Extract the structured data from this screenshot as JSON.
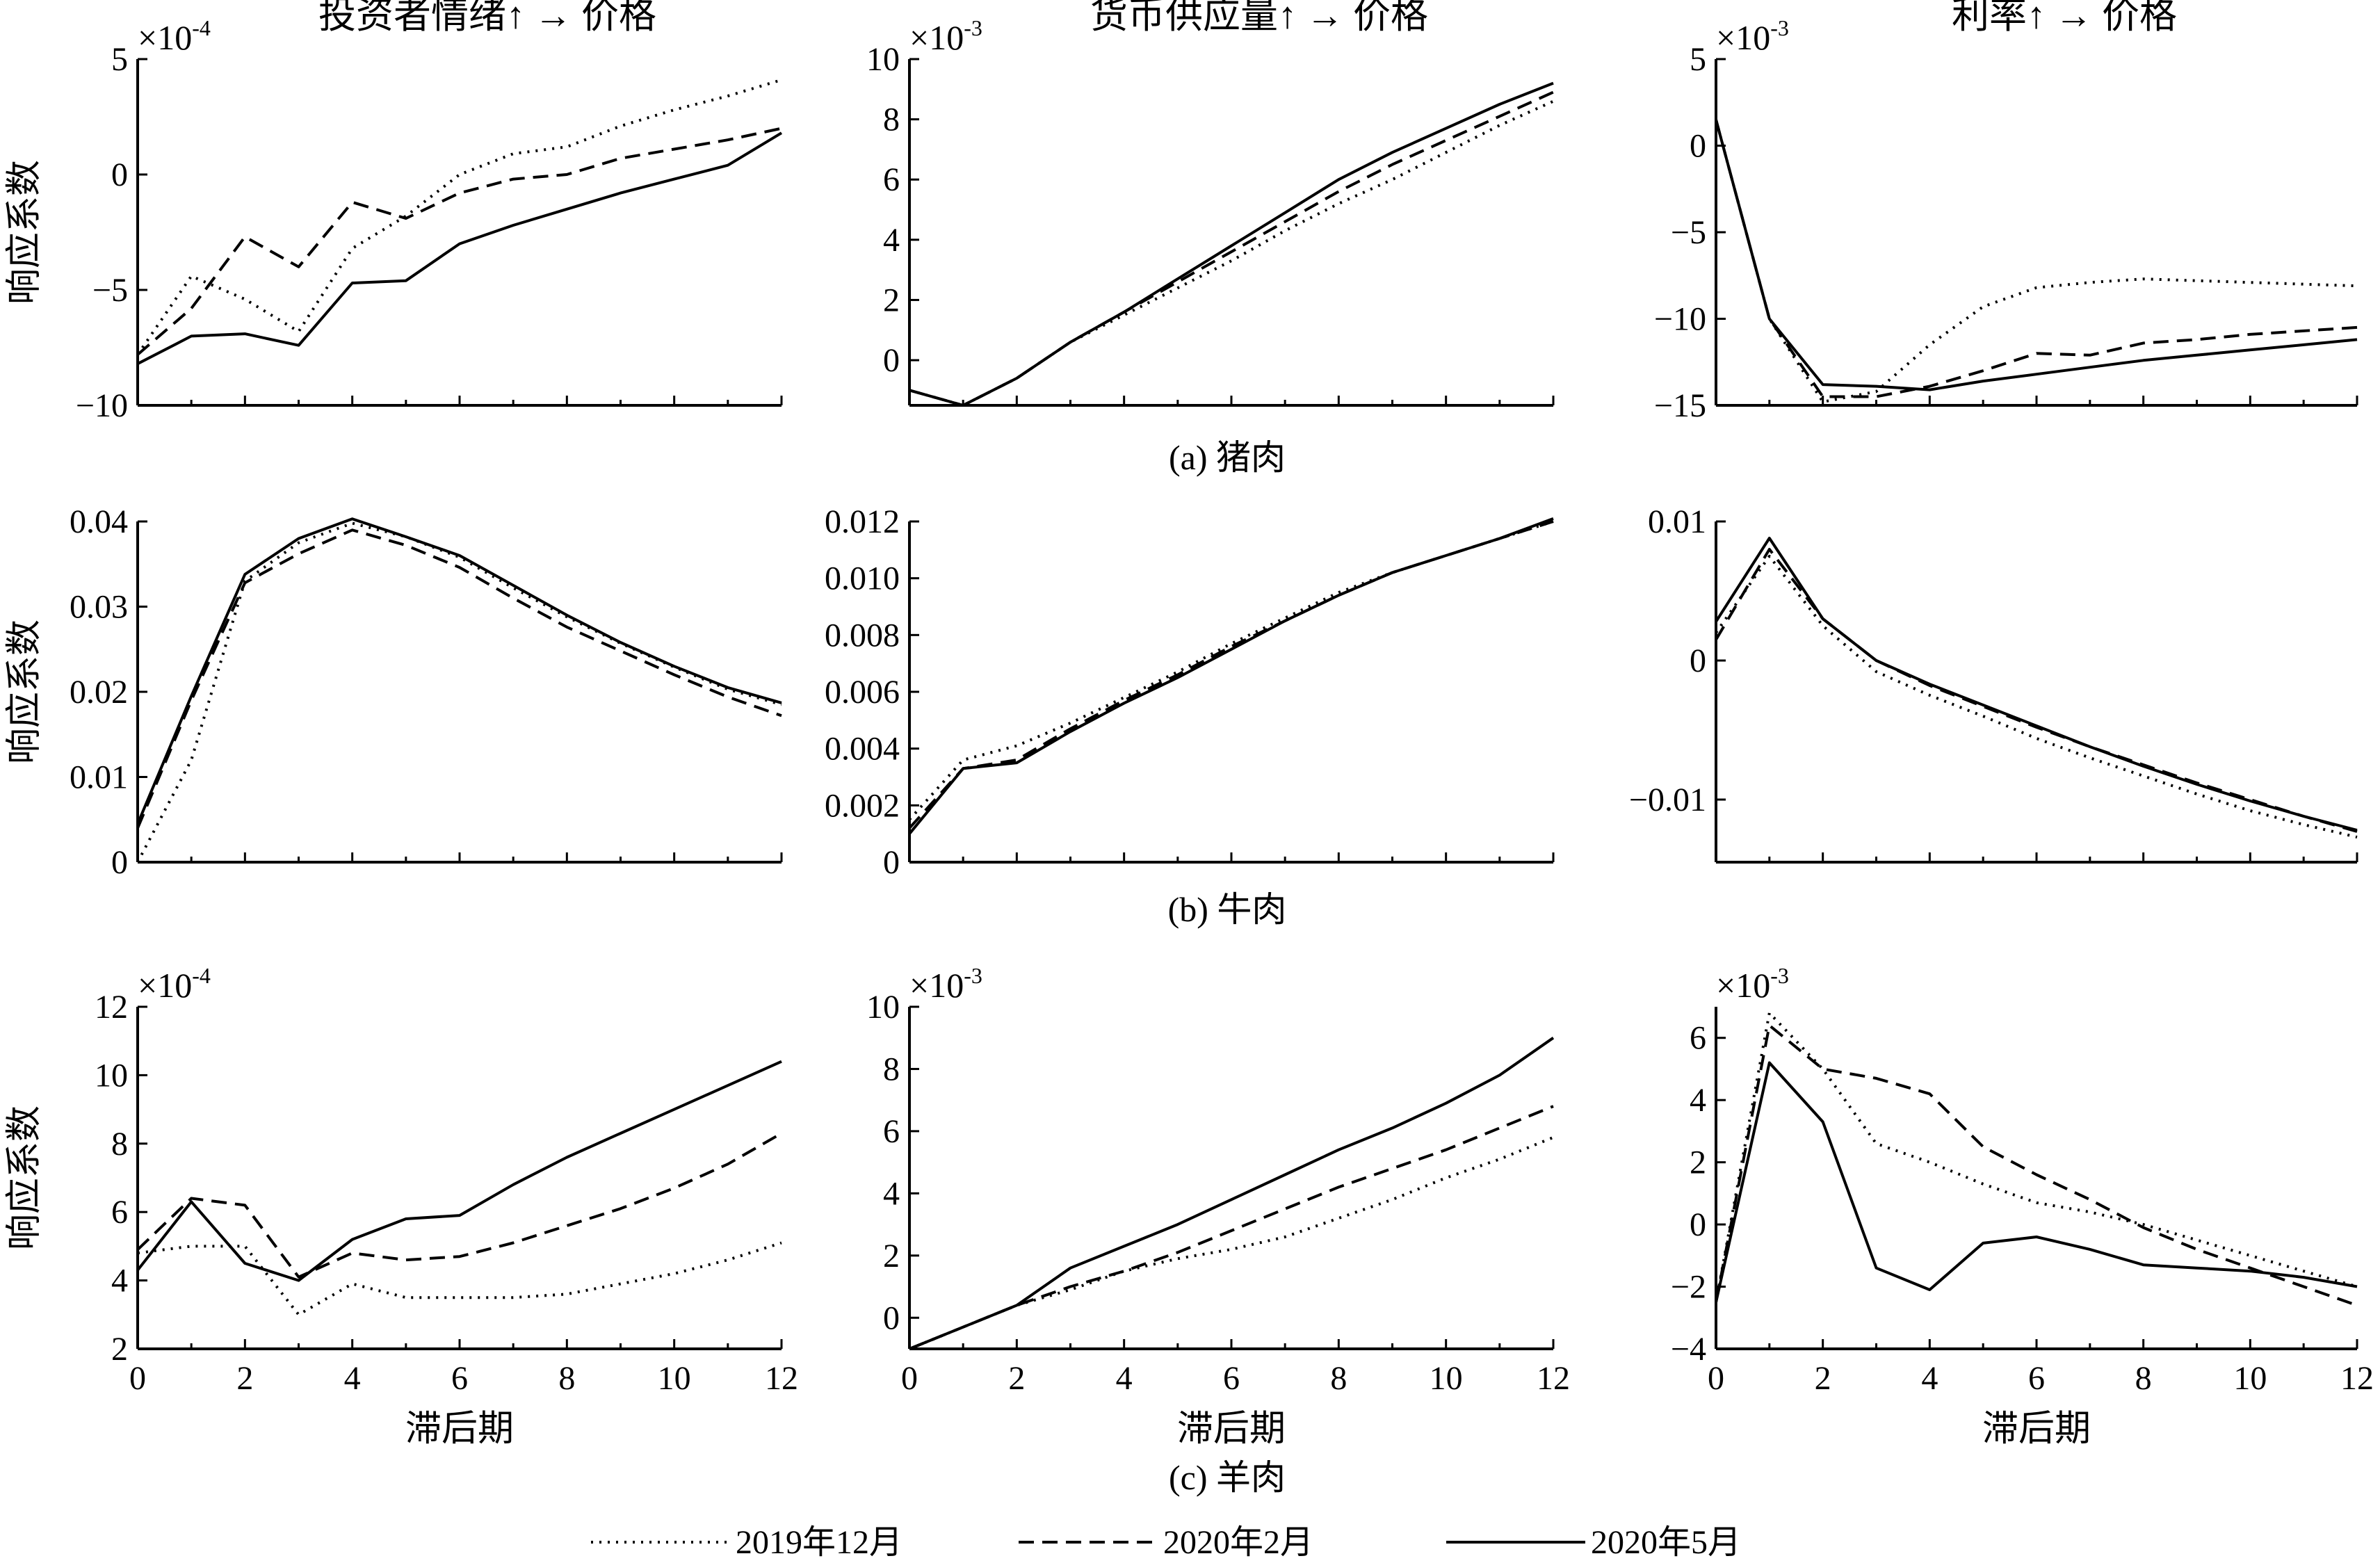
{
  "legend": [
    {
      "name": "2019年12月",
      "style": "dotted"
    },
    {
      "name": "2020年2月",
      "style": "dashed"
    },
    {
      "name": "2020年5月",
      "style": "solid"
    }
  ],
  "row_captions": [
    "(a) 猪肉",
    "(b) 牛肉",
    "(c) 羊肉"
  ],
  "column_titles": [
    "投资者情绪",
    "货币供应量",
    "利率"
  ],
  "title_suffix": "价格",
  "ylabel": "响应系数",
  "xlabel": "滞后期",
  "colors": {
    "line": "#000000",
    "background": "#ffffff"
  },
  "chart_data": [
    {
      "type": "line",
      "row": 0,
      "col": 0,
      "title": "投资者情绪↑ → 价格",
      "xlabel": "",
      "ylabel": "响应系数",
      "multiplier": {
        "base": "×10",
        "exp": "-4"
      },
      "xlim": [
        0,
        12
      ],
      "ylim": [
        -10,
        5
      ],
      "xticks": [],
      "yticks": [
        {
          "v": 5,
          "label": "5"
        },
        {
          "v": 0,
          "label": "0"
        },
        {
          "v": -5,
          "label": "−5"
        },
        {
          "v": -10,
          "label": "−10"
        }
      ],
      "x": [
        0,
        1,
        2,
        3,
        4,
        5,
        6,
        7,
        8,
        9,
        10,
        11,
        12
      ],
      "series": [
        {
          "name": "2019年12月",
          "values": [
            -7.8,
            -4.4,
            -5.4,
            -6.8,
            -3.2,
            -1.8,
            0.0,
            0.9,
            1.2,
            2.1,
            2.8,
            3.4,
            4.1
          ]
        },
        {
          "name": "2020年2月",
          "values": [
            -7.8,
            -5.8,
            -2.7,
            -4.0,
            -1.2,
            -1.9,
            -0.8,
            -0.2,
            0.0,
            0.7,
            1.1,
            1.5,
            2.0
          ]
        },
        {
          "name": "2020年5月",
          "values": [
            -8.2,
            -7.0,
            -6.9,
            -7.4,
            -4.7,
            -4.6,
            -3.0,
            -2.2,
            -1.5,
            -0.8,
            -0.2,
            0.4,
            1.8
          ]
        }
      ]
    },
    {
      "type": "line",
      "row": 0,
      "col": 1,
      "title": "货币供应量↑ → 价格",
      "xlabel": "",
      "ylabel": "",
      "multiplier": {
        "base": "×10",
        "exp": "-3"
      },
      "xlim": [
        0,
        12
      ],
      "ylim": [
        -1.5,
        10
      ],
      "xticks": [],
      "yticks": [
        {
          "v": 10,
          "label": "10"
        },
        {
          "v": 8,
          "label": "8"
        },
        {
          "v": 6,
          "label": "6"
        },
        {
          "v": 4,
          "label": "4"
        },
        {
          "v": 2,
          "label": "2"
        },
        {
          "v": 0,
          "label": "0"
        }
      ],
      "x": [
        0,
        1,
        2,
        3,
        4,
        5,
        6,
        7,
        8,
        9,
        10,
        11,
        12
      ],
      "series": [
        {
          "name": "2019年12月",
          "values": [
            -1.0,
            -1.5,
            -0.6,
            0.6,
            1.5,
            2.4,
            3.3,
            4.3,
            5.2,
            6.0,
            6.9,
            7.8,
            8.6
          ]
        },
        {
          "name": "2020年2月",
          "values": [
            -1.0,
            -1.5,
            -0.6,
            0.6,
            1.6,
            2.6,
            3.6,
            4.6,
            5.6,
            6.5,
            7.3,
            8.1,
            8.9
          ]
        },
        {
          "name": "2020年5月",
          "values": [
            -1.0,
            -1.5,
            -0.6,
            0.6,
            1.6,
            2.7,
            3.8,
            4.9,
            6.0,
            6.9,
            7.7,
            8.5,
            9.2
          ]
        }
      ]
    },
    {
      "type": "line",
      "row": 0,
      "col": 2,
      "title": "利率↑ → 价格",
      "xlabel": "",
      "ylabel": "",
      "multiplier": {
        "base": "×10",
        "exp": "-3"
      },
      "xlim": [
        0,
        12
      ],
      "ylim": [
        -15,
        5
      ],
      "xticks": [],
      "yticks": [
        {
          "v": 5,
          "label": "5"
        },
        {
          "v": 0,
          "label": "0"
        },
        {
          "v": -5,
          "label": "−5"
        },
        {
          "v": -10,
          "label": "−10"
        },
        {
          "v": -15,
          "label": "−15"
        }
      ],
      "x": [
        0,
        1,
        2,
        3,
        4,
        5,
        6,
        7,
        8,
        9,
        10,
        11,
        12
      ],
      "series": [
        {
          "name": "2019年12月",
          "values": [
            1.5,
            -10.0,
            -14.8,
            -14.2,
            -11.5,
            -9.3,
            -8.2,
            -7.9,
            -7.7,
            -7.8,
            -7.9,
            -8.0,
            -8.1
          ]
        },
        {
          "name": "2020年2月",
          "values": [
            1.5,
            -10.0,
            -14.5,
            -14.5,
            -13.9,
            -13.0,
            -12.0,
            -12.1,
            -11.4,
            -11.2,
            -10.9,
            -10.7,
            -10.5
          ]
        },
        {
          "name": "2020年5月",
          "values": [
            1.5,
            -10.0,
            -13.8,
            -13.9,
            -14.1,
            -13.6,
            -13.2,
            -12.8,
            -12.4,
            -12.1,
            -11.8,
            -11.5,
            -11.2
          ]
        }
      ]
    },
    {
      "type": "line",
      "row": 1,
      "col": 0,
      "title": "",
      "xlabel": "",
      "ylabel": "响应系数",
      "multiplier": null,
      "xlim": [
        0,
        12
      ],
      "ylim": [
        0,
        0.04
      ],
      "xticks": [],
      "yticks": [
        {
          "v": 0.04,
          "label": "0.04"
        },
        {
          "v": 0.03,
          "label": "0.03"
        },
        {
          "v": 0.02,
          "label": "0.02"
        },
        {
          "v": 0.01,
          "label": "0.01"
        },
        {
          "v": 0,
          "label": "0"
        }
      ],
      "x": [
        0,
        1,
        2,
        3,
        4,
        5,
        6,
        7,
        8,
        9,
        10,
        11,
        12
      ],
      "series": [
        {
          "name": "2019年12月",
          "values": [
            0.0,
            0.012,
            0.033,
            0.0375,
            0.0398,
            0.0382,
            0.0358,
            0.0322,
            0.0288,
            0.0257,
            0.0229,
            0.0203,
            0.0185
          ]
        },
        {
          "name": "2020年2月",
          "values": [
            0.004,
            0.019,
            0.0328,
            0.0362,
            0.039,
            0.0372,
            0.0346,
            0.031,
            0.0276,
            0.0248,
            0.022,
            0.0194,
            0.0172
          ]
        },
        {
          "name": "2020年5月",
          "values": [
            0.0045,
            0.0195,
            0.0338,
            0.038,
            0.0403,
            0.0382,
            0.036,
            0.0325,
            0.029,
            0.0258,
            0.023,
            0.0205,
            0.0187
          ]
        }
      ]
    },
    {
      "type": "line",
      "row": 1,
      "col": 1,
      "title": "",
      "xlabel": "",
      "ylabel": "",
      "multiplier": null,
      "xlim": [
        0,
        12
      ],
      "ylim": [
        0,
        0.012
      ],
      "xticks": [],
      "yticks": [
        {
          "v": 0.012,
          "label": "0.012"
        },
        {
          "v": 0.01,
          "label": "0.010"
        },
        {
          "v": 0.008,
          "label": "0.008"
        },
        {
          "v": 0.006,
          "label": "0.006"
        },
        {
          "v": 0.004,
          "label": "0.004"
        },
        {
          "v": 0.002,
          "label": "0.002"
        },
        {
          "v": 0,
          "label": "0"
        }
      ],
      "x": [
        0,
        1,
        2,
        3,
        4,
        5,
        6,
        7,
        8,
        9,
        10,
        11,
        12
      ],
      "series": [
        {
          "name": "2019年12月",
          "values": [
            0.0015,
            0.0036,
            0.0041,
            0.0049,
            0.0058,
            0.0067,
            0.0077,
            0.0086,
            0.0095,
            0.0102,
            0.0108,
            0.0114,
            0.012
          ]
        },
        {
          "name": "2020年2月",
          "values": [
            0.0012,
            0.0033,
            0.0036,
            0.0047,
            0.0057,
            0.0066,
            0.0076,
            0.0085,
            0.0094,
            0.0102,
            0.0108,
            0.0114,
            0.012
          ]
        },
        {
          "name": "2020年5月",
          "values": [
            0.001,
            0.0033,
            0.0035,
            0.0046,
            0.0056,
            0.0065,
            0.0075,
            0.0085,
            0.0094,
            0.0102,
            0.0108,
            0.0114,
            0.0121
          ]
        }
      ]
    },
    {
      "type": "line",
      "row": 1,
      "col": 2,
      "title": "",
      "xlabel": "",
      "ylabel": "",
      "multiplier": null,
      "xlim": [
        0,
        12
      ],
      "ylim": [
        -0.0145,
        0.01
      ],
      "xticks": [],
      "yticks": [
        {
          "v": 0.01,
          "label": "0.01"
        },
        {
          "v": 0,
          "label": "0"
        },
        {
          "v": -0.01,
          "label": "−0.01"
        }
      ],
      "x": [
        0,
        1,
        2,
        3,
        4,
        5,
        6,
        7,
        8,
        9,
        10,
        11,
        12
      ],
      "series": [
        {
          "name": "2019年12月",
          "values": [
            0.002,
            0.0075,
            0.0025,
            -0.0008,
            -0.0025,
            -0.004,
            -0.0056,
            -0.007,
            -0.0083,
            -0.0096,
            -0.0108,
            -0.0118,
            -0.0127
          ]
        },
        {
          "name": "2020年2月",
          "values": [
            0.0015,
            0.008,
            0.003,
            0.0,
            -0.0018,
            -0.0033,
            -0.0048,
            -0.0062,
            -0.0075,
            -0.0088,
            -0.01,
            -0.0112,
            -0.0123
          ]
        },
        {
          "name": "2020年5月",
          "values": [
            0.0028,
            0.0088,
            0.003,
            0.0,
            -0.0017,
            -0.0032,
            -0.0047,
            -0.0062,
            -0.0076,
            -0.0089,
            -0.0101,
            -0.0112,
            -0.0122
          ]
        }
      ]
    },
    {
      "type": "line",
      "row": 2,
      "col": 0,
      "title": "",
      "xlabel": "滞后期",
      "ylabel": "响应系数",
      "multiplier": {
        "base": "×10",
        "exp": "-4"
      },
      "xlim": [
        0,
        12
      ],
      "ylim": [
        2,
        12
      ],
      "xticks": [
        {
          "v": 0,
          "label": "0"
        },
        {
          "v": 2,
          "label": "2"
        },
        {
          "v": 4,
          "label": "4"
        },
        {
          "v": 6,
          "label": "6"
        },
        {
          "v": 8,
          "label": "8"
        },
        {
          "v": 10,
          "label": "10"
        },
        {
          "v": 12,
          "label": "12"
        }
      ],
      "yticks": [
        {
          "v": 12,
          "label": "12"
        },
        {
          "v": 10,
          "label": "10"
        },
        {
          "v": 8,
          "label": "8"
        },
        {
          "v": 6,
          "label": "6"
        },
        {
          "v": 4,
          "label": "4"
        },
        {
          "v": 2,
          "label": "2"
        }
      ],
      "x": [
        0,
        1,
        2,
        3,
        4,
        5,
        6,
        7,
        8,
        9,
        10,
        11,
        12
      ],
      "series": [
        {
          "name": "2019年12月",
          "values": [
            4.8,
            5.0,
            5.0,
            3.0,
            3.9,
            3.5,
            3.5,
            3.5,
            3.6,
            3.9,
            4.2,
            4.6,
            5.1
          ]
        },
        {
          "name": "2020年2月",
          "values": [
            4.9,
            6.4,
            6.2,
            4.1,
            4.8,
            4.6,
            4.7,
            5.1,
            5.6,
            6.1,
            6.7,
            7.4,
            8.3
          ]
        },
        {
          "name": "2020年5月",
          "values": [
            4.3,
            6.3,
            4.5,
            4.0,
            5.2,
            5.8,
            5.9,
            6.8,
            7.6,
            8.3,
            9.0,
            9.7,
            10.4
          ]
        }
      ]
    },
    {
      "type": "line",
      "row": 2,
      "col": 1,
      "title": "",
      "xlabel": "滞后期",
      "ylabel": "",
      "multiplier": {
        "base": "×10",
        "exp": "-3"
      },
      "xlim": [
        0,
        12
      ],
      "ylim": [
        -1,
        10
      ],
      "xticks": [
        {
          "v": 0,
          "label": "0"
        },
        {
          "v": 2,
          "label": "2"
        },
        {
          "v": 4,
          "label": "4"
        },
        {
          "v": 6,
          "label": "6"
        },
        {
          "v": 8,
          "label": "8"
        },
        {
          "v": 10,
          "label": "10"
        },
        {
          "v": 12,
          "label": "12"
        }
      ],
      "yticks": [
        {
          "v": 10,
          "label": "10"
        },
        {
          "v": 8,
          "label": "8"
        },
        {
          "v": 6,
          "label": "6"
        },
        {
          "v": 4,
          "label": "4"
        },
        {
          "v": 2,
          "label": "2"
        },
        {
          "v": 0,
          "label": "0"
        }
      ],
      "x": [
        0,
        1,
        2,
        3,
        4,
        5,
        6,
        7,
        8,
        9,
        10,
        11,
        12
      ],
      "series": [
        {
          "name": "2019年12月",
          "values": [
            -1.0,
            -0.3,
            0.4,
            0.9,
            1.5,
            1.9,
            2.2,
            2.6,
            3.2,
            3.8,
            4.5,
            5.1,
            5.8
          ]
        },
        {
          "name": "2020年2月",
          "values": [
            -1.0,
            -0.3,
            0.4,
            1.0,
            1.5,
            2.1,
            2.8,
            3.5,
            4.2,
            4.8,
            5.4,
            6.1,
            6.8
          ]
        },
        {
          "name": "2020年5月",
          "values": [
            -1.0,
            -0.3,
            0.4,
            1.6,
            2.3,
            3.0,
            3.8,
            4.6,
            5.4,
            6.1,
            6.9,
            7.8,
            9.0
          ]
        }
      ]
    },
    {
      "type": "line",
      "row": 2,
      "col": 2,
      "title": "",
      "xlabel": "滞后期",
      "ylabel": "",
      "multiplier": {
        "base": "×10",
        "exp": "-3"
      },
      "xlim": [
        0,
        12
      ],
      "ylim": [
        -4,
        7
      ],
      "xticks": [
        {
          "v": 0,
          "label": "0"
        },
        {
          "v": 2,
          "label": "2"
        },
        {
          "v": 4,
          "label": "4"
        },
        {
          "v": 6,
          "label": "6"
        },
        {
          "v": 8,
          "label": "8"
        },
        {
          "v": 10,
          "label": "10"
        },
        {
          "v": 12,
          "label": "12"
        }
      ],
      "yticks": [
        {
          "v": 6,
          "label": "6"
        },
        {
          "v": 4,
          "label": "4"
        },
        {
          "v": 2,
          "label": "2"
        },
        {
          "v": 0,
          "label": "0"
        },
        {
          "v": -2,
          "label": "−2"
        },
        {
          "v": -4,
          "label": "−4"
        }
      ],
      "x": [
        0,
        1,
        2,
        3,
        4,
        5,
        6,
        7,
        8,
        9,
        10,
        11,
        12
      ],
      "series": [
        {
          "name": "2019年12月",
          "values": [
            -2.5,
            6.8,
            5.0,
            2.6,
            2.0,
            1.3,
            0.7,
            0.4,
            0.0,
            -0.5,
            -1.0,
            -1.5,
            -2.0
          ]
        },
        {
          "name": "2020年2月",
          "values": [
            -2.5,
            6.4,
            5.0,
            4.7,
            4.2,
            2.5,
            1.6,
            0.8,
            -0.1,
            -0.8,
            -1.4,
            -2.0,
            -2.6
          ]
        },
        {
          "name": "2020年5月",
          "values": [
            -2.5,
            5.2,
            3.3,
            -1.4,
            -2.1,
            -0.6,
            -0.4,
            -0.8,
            -1.3,
            -1.4,
            -1.5,
            -1.7,
            -2.0
          ]
        }
      ]
    }
  ]
}
